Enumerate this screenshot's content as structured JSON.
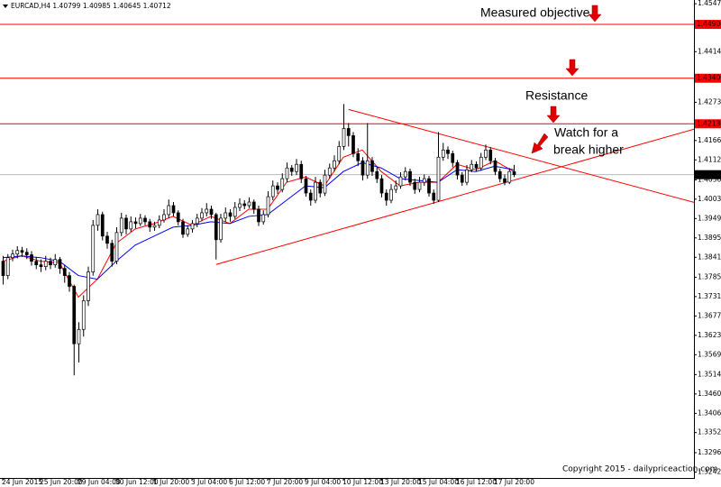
{
  "chart_data": {
    "type": "candlestick",
    "symbol": "EURCAD,H4",
    "categories": [
      "24 Jun 2015",
      null,
      null,
      null,
      null,
      null,
      null,
      null,
      "25 Jun 20:00",
      null,
      null,
      null,
      null,
      null,
      null,
      null,
      "29 Jun 04:00",
      null,
      null,
      null,
      null,
      null,
      null,
      null,
      "30 Jun 12:00",
      null,
      null,
      null,
      null,
      null,
      null,
      null,
      "1 Jul 20:00",
      null,
      null,
      null,
      null,
      null,
      null,
      null,
      "3 Jul 04:00",
      null,
      null,
      null,
      null,
      null,
      null,
      null,
      "6 Jul 12:00",
      null,
      null,
      null,
      null,
      null,
      null,
      null,
      "7 Jul 20:00",
      null,
      null,
      null,
      null,
      null,
      null,
      null,
      "9 Jul 04:00",
      null,
      null,
      null,
      null,
      null,
      null,
      null,
      "10 Jul 12:00",
      null,
      null,
      null,
      null,
      null,
      null,
      null,
      "13 Jul 20:00",
      null,
      null,
      null,
      null,
      null,
      null,
      null,
      "15 Jul 04:00",
      null,
      null,
      null,
      null,
      null,
      null,
      null,
      "16 Jul 12:00",
      null,
      null,
      null,
      null,
      null,
      null,
      null,
      "17 Jul 20:00",
      null,
      null,
      null,
      null
    ],
    "open": [
      1.383,
      1.379,
      1.384,
      1.385,
      1.386,
      1.3855,
      1.3848,
      1.383,
      1.382,
      1.3815,
      1.383,
      1.382,
      1.3835,
      1.381,
      1.379,
      1.376,
      1.36,
      1.364,
      1.372,
      1.38,
      1.393,
      1.396,
      1.39,
      1.388,
      1.383,
      1.391,
      1.395,
      1.392,
      1.394,
      1.3935,
      1.395,
      1.394,
      1.3925,
      1.393,
      1.3945,
      1.396,
      1.3985,
      1.3965,
      1.394,
      1.3905,
      1.392,
      1.3935,
      1.395,
      1.3965,
      1.3975,
      1.396,
      1.389,
      1.395,
      1.3965,
      1.3955,
      1.398,
      1.399,
      1.3985,
      1.3995,
      1.3975,
      1.394,
      1.396,
      1.401,
      1.404,
      1.403,
      1.406,
      1.409,
      1.408,
      1.41,
      1.406,
      1.402,
      1.4,
      1.405,
      1.402,
      1.407,
      1.409,
      1.411,
      1.415,
      1.42,
      1.418,
      1.413,
      1.411,
      1.407,
      1.411,
      1.408,
      1.406,
      1.402,
      1.4,
      1.403,
      1.404,
      1.4065,
      1.408,
      1.405,
      1.403,
      1.405,
      1.406,
      1.402,
      1.4,
      1.412,
      1.414,
      1.413,
      1.4105,
      1.407,
      1.405,
      1.4085,
      1.41,
      1.409,
      1.412,
      1.414,
      1.411,
      1.408,
      1.406,
      1.405,
      1.40799
    ],
    "high": [
      1.3845,
      1.385,
      1.3862,
      1.3872,
      1.387,
      1.3866,
      1.3858,
      1.3842,
      1.3835,
      1.3845,
      1.384,
      1.385,
      1.3842,
      1.382,
      1.38,
      1.3765,
      1.366,
      1.3735,
      1.3815,
      1.3945,
      1.3975,
      1.3968,
      1.3912,
      1.389,
      1.3925,
      1.3965,
      1.396,
      1.3955,
      1.3952,
      1.3962,
      1.3958,
      1.3948,
      1.394,
      1.3958,
      1.3975,
      1.4002,
      1.3995,
      1.3972,
      1.3948,
      1.393,
      1.3945,
      1.3962,
      1.3978,
      1.3992,
      1.3985,
      1.3965,
      1.3962,
      1.398,
      1.3975,
      1.3995,
      1.4005,
      1.4,
      1.4008,
      1.4002,
      1.3985,
      1.3972,
      1.4025,
      1.4055,
      1.405,
      1.4075,
      1.4105,
      1.4098,
      1.4115,
      1.411,
      1.4068,
      1.403,
      1.4065,
      1.4058,
      1.4085,
      1.4102,
      1.4125,
      1.4165,
      1.4268,
      1.4215,
      1.419,
      1.4145,
      1.412,
      1.4215,
      1.412,
      1.4092,
      1.407,
      1.403,
      1.4045,
      1.4055,
      1.4078,
      1.4092,
      1.4088,
      1.406,
      1.4065,
      1.4072,
      1.4068,
      1.403,
      1.419,
      1.416,
      1.415,
      1.4138,
      1.4112,
      1.4078,
      1.4098,
      1.4112,
      1.4108,
      1.4132,
      1.4155,
      1.4148,
      1.4118,
      1.4088,
      1.4072,
      1.409,
      1.40985
    ],
    "low": [
      1.3765,
      1.378,
      1.383,
      1.3838,
      1.3842,
      1.3836,
      1.3818,
      1.3808,
      1.38,
      1.3805,
      1.3808,
      1.3812,
      1.3795,
      1.377,
      1.3745,
      1.3512,
      1.3548,
      1.362,
      1.3705,
      1.379,
      1.3915,
      1.3888,
      1.3865,
      1.3815,
      1.3822,
      1.39,
      1.3905,
      1.3912,
      1.3922,
      1.3928,
      1.393,
      1.3912,
      1.3915,
      1.3922,
      1.3938,
      1.395,
      1.3955,
      1.393,
      1.3895,
      1.3898,
      1.391,
      1.3925,
      1.3942,
      1.3955,
      1.3948,
      1.3835,
      1.3882,
      1.394,
      1.394,
      1.3948,
      1.397,
      1.3975,
      1.3978,
      1.3962,
      1.3928,
      1.3932,
      1.3952,
      1.4,
      1.4018,
      1.4022,
      1.405,
      1.4068,
      1.407,
      1.4048,
      1.401,
      1.3985,
      1.3992,
      1.4008,
      1.4012,
      1.406,
      1.408,
      1.41,
      1.414,
      1.415,
      1.412,
      1.4095,
      1.4055,
      1.406,
      1.4068,
      1.4048,
      1.4008,
      1.3985,
      1.3992,
      1.402,
      1.4032,
      1.4055,
      1.404,
      1.4018,
      1.4022,
      1.404,
      1.401,
      1.399,
      1.3995,
      1.411,
      1.4115,
      1.4092,
      1.4058,
      1.404,
      1.4042,
      1.4078,
      1.408,
      1.4082,
      1.4112,
      1.41,
      1.407,
      1.405,
      1.4042,
      1.4045,
      1.40645
    ],
    "close": [
      1.379,
      1.384,
      1.385,
      1.386,
      1.3855,
      1.3848,
      1.383,
      1.382,
      1.3815,
      1.383,
      1.382,
      1.3835,
      1.381,
      1.379,
      1.376,
      1.36,
      1.364,
      1.372,
      1.38,
      1.393,
      1.396,
      1.39,
      1.388,
      1.383,
      1.391,
      1.395,
      1.392,
      1.394,
      1.3935,
      1.395,
      1.394,
      1.3925,
      1.393,
      1.3945,
      1.396,
      1.3985,
      1.3965,
      1.394,
      1.3905,
      1.392,
      1.3935,
      1.395,
      1.3965,
      1.3975,
      1.396,
      1.389,
      1.395,
      1.3965,
      1.3955,
      1.398,
      1.399,
      1.3985,
      1.3995,
      1.3975,
      1.394,
      1.396,
      1.401,
      1.404,
      1.403,
      1.406,
      1.409,
      1.408,
      1.41,
      1.406,
      1.402,
      1.4,
      1.405,
      1.402,
      1.407,
      1.409,
      1.411,
      1.415,
      1.42,
      1.418,
      1.413,
      1.411,
      1.407,
      1.411,
      1.408,
      1.406,
      1.402,
      1.4,
      1.403,
      1.404,
      1.4065,
      1.408,
      1.405,
      1.403,
      1.405,
      1.406,
      1.402,
      1.4,
      1.412,
      1.414,
      1.413,
      1.4105,
      1.407,
      1.405,
      1.4085,
      1.41,
      1.409,
      1.412,
      1.414,
      1.411,
      1.408,
      1.406,
      1.405,
      1.408,
      1.40712
    ],
    "moving_averages": [
      {
        "color": "#ff0000",
        "x": [
          0,
          4,
          8,
          12,
          16,
          20,
          24,
          28,
          32,
          36,
          40,
          44,
          48,
          52,
          56,
          60,
          64,
          68,
          72,
          76,
          80,
          84,
          88,
          92,
          96,
          100,
          104,
          108
        ],
        "values": [
          1.383,
          1.3845,
          1.383,
          1.3825,
          1.373,
          1.378,
          1.388,
          1.392,
          1.3935,
          1.3955,
          1.393,
          1.3955,
          1.3935,
          1.3975,
          1.3975,
          1.405,
          1.4065,
          1.404,
          1.412,
          1.414,
          1.408,
          1.404,
          1.405,
          1.405,
          1.41,
          1.4085,
          1.411,
          1.408
        ]
      },
      {
        "color": "#0000ff",
        "x": [
          0,
          4,
          8,
          12,
          16,
          20,
          24,
          28,
          32,
          36,
          40,
          44,
          48,
          52,
          56,
          60,
          64,
          68,
          72,
          76,
          80,
          84,
          88,
          92,
          96,
          100,
          104,
          108
        ],
        "values": [
          1.384,
          1.3845,
          1.384,
          1.383,
          1.379,
          1.378,
          1.383,
          1.3875,
          1.39,
          1.3925,
          1.393,
          1.394,
          1.3935,
          1.3955,
          1.396,
          1.4,
          1.404,
          1.4035,
          1.408,
          1.4105,
          1.409,
          1.406,
          1.4055,
          1.405,
          1.4085,
          1.408,
          1.4095,
          1.4085
        ]
      }
    ],
    "levels": [
      1.449,
      1.434,
      1.4213
    ],
    "level_labels": [
      "1.44900",
      "1.43400",
      "1.42130"
    ],
    "level_color": "#ff0000",
    "trendlines": [
      {
        "x": [
          73.1,
          146.1
        ],
        "values": [
          1.4253,
          1.3994
        ]
      },
      {
        "x": [
          45.1,
          146.1
        ],
        "values": [
          1.3821,
          1.4198
        ]
      }
    ],
    "ylim": [
      1.3226,
      1.4558
    ],
    "yticks": [
      {
        "value": 1.45475,
        "label": "1.45475"
      },
      {
        "value": 1.4414,
        "label": "1.44140"
      },
      {
        "value": 1.4273,
        "label": "1.42730"
      },
      {
        "value": 1.41665,
        "label": "1.41665"
      },
      {
        "value": 1.41125,
        "label": "1.41125"
      },
      {
        "value": 1.40565,
        "label": "1.40565"
      },
      {
        "value": 1.4003,
        "label": "1.40030"
      },
      {
        "value": 1.3949,
        "label": "1.39490"
      },
      {
        "value": 1.3895,
        "label": "1.38950"
      },
      {
        "value": 1.3841,
        "label": "1.38410"
      },
      {
        "value": 1.37855,
        "label": "1.37855"
      },
      {
        "value": 1.37315,
        "label": "1.37315"
      },
      {
        "value": 1.36775,
        "label": "1.36775"
      },
      {
        "value": 1.36235,
        "label": "1.36235"
      },
      {
        "value": 1.35695,
        "label": "1.35695"
      },
      {
        "value": 1.3514,
        "label": "1.35140"
      },
      {
        "value": 1.346,
        "label": "1.34600"
      },
      {
        "value": 1.3406,
        "label": "1.34060"
      },
      {
        "value": 1.33525,
        "label": "1.33525"
      },
      {
        "value": 1.32965,
        "label": "1.32965"
      },
      {
        "value": 1.32425,
        "label": "1.32425"
      }
    ],
    "annotations": [
      "Measured objective",
      "Resistance",
      "Watch for a",
      "break higher"
    ],
    "copyright": "Copyright 2015 - dailypriceaction.com"
  }
}
